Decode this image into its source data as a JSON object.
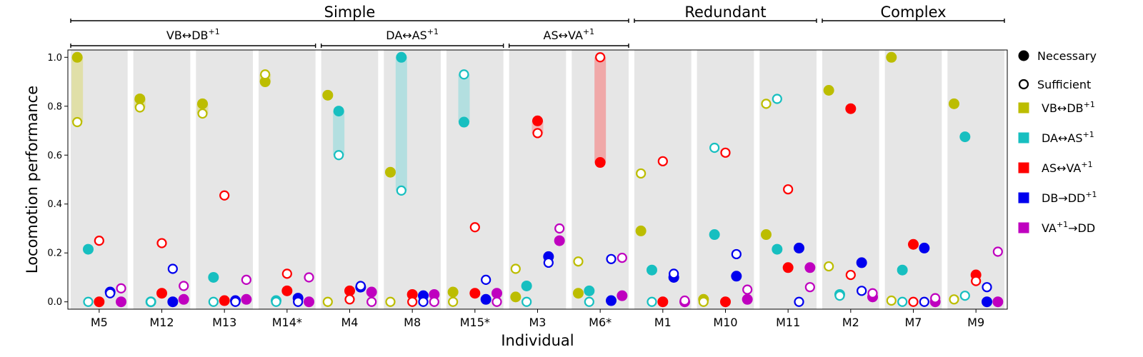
{
  "chart_data": {
    "type": "scatter",
    "xlabel": "Individual",
    "ylabel": "Locomotion performance",
    "ylim": [
      -0.03,
      1.03
    ],
    "yticks": [
      "0.0",
      "0.2",
      "0.4",
      "0.6",
      "0.8",
      "1.0"
    ],
    "categories": [
      "M5",
      "M12",
      "M13",
      "M14*",
      "M4",
      "M8",
      "M15*",
      "M3",
      "M6*",
      "M1",
      "M10",
      "M11",
      "M2",
      "M7",
      "M9"
    ],
    "groups": [
      {
        "label": "Simple",
        "from": 0,
        "to": 8
      },
      {
        "label": "Redundant",
        "from": 9,
        "to": 11
      },
      {
        "label": "Complex",
        "from": 12,
        "to": 14
      }
    ],
    "subgroups": [
      {
        "label_main": "VB↔DB",
        "label_sup": "+1",
        "from": 0,
        "to": 3
      },
      {
        "label_main": "DA↔AS",
        "label_sup": "+1",
        "from": 4,
        "to": 6
      },
      {
        "label_main": "AS↔VA",
        "label_sup": "+1",
        "from": 7,
        "to": 8
      }
    ],
    "legend": {
      "markers": [
        {
          "label": "Necessary",
          "style": "filled"
        },
        {
          "label": "Sufficient",
          "style": "hollow"
        }
      ],
      "series": [
        {
          "main": "VB↔DB",
          "sup": "+1",
          "suffix": ""
        },
        {
          "main": "DA↔AS",
          "sup": "+1",
          "suffix": ""
        },
        {
          "main": "AS↔VA",
          "sup": "+1",
          "suffix": ""
        },
        {
          "main": "DB→DD",
          "sup": "+1",
          "suffix": ""
        },
        {
          "main": "VA",
          "sup": "+1",
          "suffix": "→DD"
        }
      ]
    },
    "series": [
      {
        "key": "VBDB",
        "color": "#bcbd00",
        "necessary": [
          1.0,
          0.83,
          0.81,
          0.9,
          0.845,
          0.53,
          0.04,
          0.02,
          0.035,
          0.29,
          0.01,
          0.275,
          0.865,
          1.0,
          0.81
        ],
        "sufficient": [
          0.735,
          0.795,
          0.77,
          0.93,
          0.0,
          0.0,
          0.0,
          0.135,
          0.165,
          0.525,
          0.0,
          0.81,
          0.145,
          0.005,
          0.01
        ]
      },
      {
        "key": "DAAS",
        "color": "#17bfc0",
        "necessary": [
          0.215,
          0.0,
          0.1,
          0.005,
          0.78,
          1.0,
          0.735,
          0.065,
          0.045,
          0.13,
          0.275,
          0.215,
          0.03,
          0.13,
          0.675
        ],
        "sufficient": [
          0.0,
          0.0,
          0.0,
          0.0,
          0.6,
          0.455,
          0.93,
          0.0,
          0.0,
          0.0,
          0.63,
          0.83,
          0.025,
          0.0,
          0.025
        ]
      },
      {
        "key": "ASVA",
        "color": "#ff0000",
        "necessary": [
          0.0,
          0.035,
          0.005,
          0.045,
          0.045,
          0.03,
          0.035,
          0.74,
          0.57,
          0.0,
          0.0,
          0.14,
          0.79,
          0.235,
          0.11
        ],
        "sufficient": [
          0.25,
          0.24,
          0.435,
          0.115,
          0.01,
          0.0,
          0.305,
          0.69,
          1.0,
          0.575,
          0.61,
          0.46,
          0.11,
          0.0,
          0.085
        ]
      },
      {
        "key": "DBDD",
        "color": "#0000ee",
        "necessary": [
          0.04,
          0.0,
          0.005,
          0.015,
          0.06,
          0.025,
          0.01,
          0.185,
          0.005,
          0.1,
          0.105,
          0.22,
          0.16,
          0.22,
          0.0
        ],
        "sufficient": [
          0.035,
          0.135,
          0.0,
          0.0,
          0.065,
          0.0,
          0.09,
          0.16,
          0.175,
          0.115,
          0.195,
          0.0,
          0.045,
          0.0,
          0.06
        ]
      },
      {
        "key": "VADD",
        "color": "#bf00bf",
        "necessary": [
          0.0,
          0.01,
          0.01,
          0.0,
          0.04,
          0.03,
          0.035,
          0.25,
          0.025,
          0.0,
          0.01,
          0.14,
          0.02,
          0.0,
          0.0
        ],
        "sufficient": [
          0.055,
          0.065,
          0.09,
          0.1,
          0.0,
          0.0,
          0.0,
          0.3,
          0.18,
          0.005,
          0.05,
          0.06,
          0.035,
          0.015,
          0.205
        ]
      }
    ],
    "highlight_bars": [
      {
        "category": 0,
        "series": "VBDB",
        "from": 0.735,
        "to": 1.0,
        "color": "#e0dfa8"
      },
      {
        "category": 1,
        "series": "VBDB",
        "from": 0.795,
        "to": 0.83,
        "color": "#e0dfa8"
      },
      {
        "category": 2,
        "series": "VBDB",
        "from": 0.77,
        "to": 0.81,
        "color": "#e0dfa8"
      },
      {
        "category": 3,
        "series": "VBDB",
        "from": 0.9,
        "to": 0.93,
        "color": "#e0dfa8"
      },
      {
        "category": 4,
        "series": "DAAS",
        "from": 0.6,
        "to": 0.78,
        "color": "#b3dfe0"
      },
      {
        "category": 5,
        "series": "DAAS",
        "from": 0.455,
        "to": 1.0,
        "color": "#b3dfe0"
      },
      {
        "category": 6,
        "series": "DAAS",
        "from": 0.735,
        "to": 0.93,
        "color": "#b3dfe0"
      },
      {
        "category": 7,
        "series": "ASVA",
        "from": 0.69,
        "to": 0.74,
        "color": "#f4b5b5"
      },
      {
        "category": 8,
        "series": "ASVA",
        "from": 0.57,
        "to": 1.0,
        "color": "#f0a8a8"
      }
    ]
  }
}
